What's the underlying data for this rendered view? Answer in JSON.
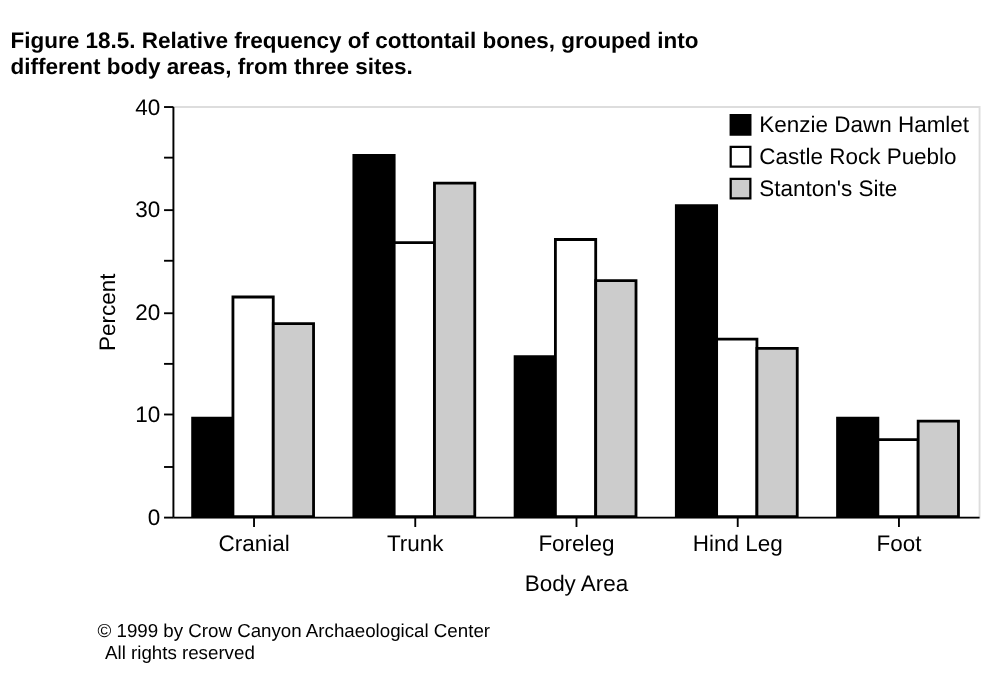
{
  "chart_data": {
    "type": "bar",
    "title": "Figure 18.5.  Relative frequency of cottontail bones, grouped into\ndifferent body areas, from three sites.",
    "xlabel": "Body Area",
    "ylabel": "Percent",
    "categories": [
      "Cranial",
      "Trunk",
      "Foreleg",
      "Hind Leg",
      "Foot"
    ],
    "series": [
      {
        "name": "Kenzie Dawn Hamlet",
        "color": "#000000",
        "values": [
          9.6,
          35.2,
          15.6,
          30.3,
          9.6
        ]
      },
      {
        "name": "Castle Rock Pueblo",
        "color": "#ffffff",
        "values": [
          21.4,
          26.7,
          27.0,
          17.3,
          7.5
        ]
      },
      {
        "name": "Stanton's Site",
        "color": "#cccccc",
        "values": [
          18.8,
          32.5,
          23.0,
          16.4,
          9.3
        ]
      }
    ],
    "ylim": [
      0,
      40
    ],
    "yticks": [
      0,
      {
        "value": 5,
        "label": null
      },
      10,
      {
        "value": 15,
        "label": null
      },
      20,
      {
        "value": 25,
        "label": null
      },
      30,
      {
        "value": 35,
        "label": null
      },
      40
    ],
    "grid": false,
    "legend": "top right",
    "annotations": [
      "© 1999 by Crow Canyon Archaeological Center",
      "All rights reserved"
    ]
  }
}
